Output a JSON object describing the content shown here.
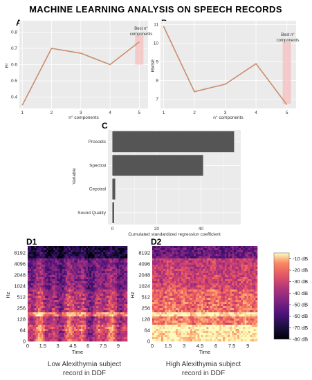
{
  "figure_title": "MACHINE LEARNING ANALYSIS ON SPEECH RECORDS",
  "colors": {
    "panel_bg": "#ebebeb",
    "line": "#c98c6e",
    "highlight": "#f4c4c4",
    "bar": "#555555",
    "grid": "#ffffff"
  },
  "chart_data": [
    {
      "panel": "A",
      "type": "line",
      "x": [
        1,
        2,
        3,
        4,
        5
      ],
      "y": [
        0.35,
        0.7,
        0.67,
        0.6,
        0.74
      ],
      "xlabel": "n° components",
      "ylabel": "R²",
      "yticks": [
        "0.4",
        "0.5",
        "0.6",
        "0.7",
        "0.8"
      ],
      "xticks": [
        "1",
        "2",
        "3",
        "4",
        "5"
      ],
      "ylim": [
        0.33,
        0.87
      ],
      "xlim": [
        0.9,
        5.3
      ],
      "annotation": "Best n° components",
      "highlight_x": 5,
      "highlight_y": [
        0.6,
        0.78
      ],
      "grid": true
    },
    {
      "panel": "B",
      "type": "line",
      "x": [
        1,
        2,
        3,
        4,
        5
      ],
      "y": [
        10.9,
        7.4,
        7.8,
        8.9,
        6.7
      ],
      "xlabel": "n° components",
      "ylabel": "RMSE",
      "yticks": [
        "7",
        "8",
        "9",
        "10",
        "11"
      ],
      "xticks": [
        "1",
        "2",
        "3",
        "4",
        "5"
      ],
      "ylim": [
        6.5,
        11.2
      ],
      "xlim": [
        0.9,
        5.3
      ],
      "annotation": "Best n° components",
      "highlight_x": 5,
      "highlight_y": [
        6.75,
        10.05
      ],
      "grid": true
    },
    {
      "panel": "C",
      "type": "bar",
      "orientation": "horizontal",
      "categories": [
        "Prosodic",
        "Spectral",
        "Cepstral",
        "Sound Quality"
      ],
      "values": [
        55,
        41,
        1.3,
        0.8
      ],
      "xlabel": "Cumulated standardized regression coefficient",
      "ylabel": "Variable",
      "xticks": [
        "0",
        "20",
        "40"
      ],
      "xlim": [
        -2,
        58
      ],
      "grid": true
    },
    {
      "panel": "D1",
      "type": "heatmap",
      "yticks": [
        "8192",
        "4096",
        "2048",
        "1024",
        "512",
        "256",
        "128",
        "64",
        "0"
      ],
      "xticks": [
        "0",
        "1.5",
        "3",
        "4.5",
        "6",
        "7.5",
        "9"
      ],
      "xlabel": "Time",
      "ylabel": "Hz",
      "caption": "Low Alexithymia subject record in DDF",
      "xlim": [
        0,
        9.9
      ],
      "colorscale": "magma"
    },
    {
      "panel": "D2",
      "type": "heatmap",
      "yticks": [
        "8192",
        "4096",
        "2048",
        "1024",
        "512",
        "256",
        "128",
        "64",
        "0"
      ],
      "xticks": [
        "0",
        "1.5",
        "3",
        "4.5",
        "6",
        "7.5",
        "9"
      ],
      "xlabel": "Time",
      "ylabel": "Hz",
      "caption": "High Alexithymia subject record in DDF",
      "xlim": [
        0,
        9.9
      ],
      "colorscale": "magma"
    }
  ],
  "colorbar": {
    "ticks": [
      "-10 dB",
      "-20 dB",
      "-30 dB",
      "-40 dB",
      "-50 dB",
      "-60 dB",
      "-70 dB",
      "-80 dB"
    ],
    "range_db": [
      -80,
      -5
    ]
  },
  "captions": {
    "d1_line1": "Low Alexithymia subject",
    "d1_line2": "record in DDF",
    "d2_line1": "High Alexithymia subject",
    "d2_line2": "record in DDF"
  }
}
